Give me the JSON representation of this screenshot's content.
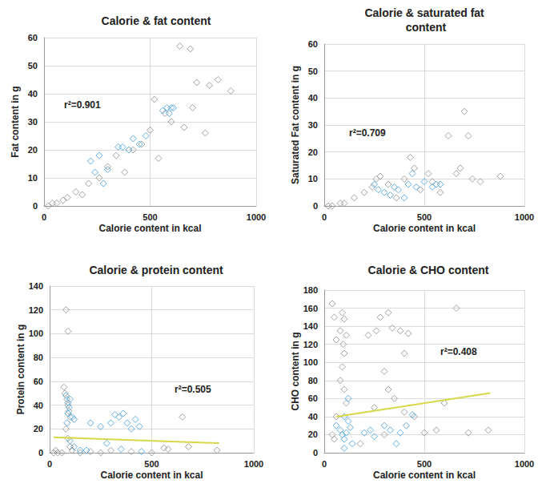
{
  "chart_data": [
    {
      "type": "scatter",
      "title": "Calorie & fat content",
      "x_label": "Calorie content in kcal",
      "y_label": "Fat content in g",
      "annotation": "r²=0.901",
      "xlim": [
        0,
        1000
      ],
      "xticks": [
        0,
        500,
        1000
      ],
      "ylim": [
        0,
        60
      ],
      "yticks": [
        0,
        10,
        20,
        30,
        40,
        50,
        60
      ],
      "grid": true,
      "series": [
        {
          "color": "#8c8c8c",
          "marker": "diamond",
          "x": [
            20,
            40,
            60,
            90,
            110,
            150,
            180,
            210,
            260,
            300,
            340,
            380,
            420,
            460,
            500,
            520,
            540,
            570,
            600,
            640,
            660,
            690,
            700,
            720,
            760,
            780,
            820,
            880
          ],
          "values": [
            0,
            1,
            1,
            2,
            3,
            5,
            4,
            8,
            10,
            14,
            18,
            12,
            20,
            22,
            27,
            38,
            17,
            33,
            30,
            57,
            28,
            56,
            35,
            44,
            26,
            43,
            45,
            41
          ]
        },
        {
          "color": "#3a9ad9",
          "marker": "diamond",
          "x": [
            220,
            240,
            260,
            280,
            300,
            350,
            370,
            400,
            420,
            450,
            480,
            560,
            580,
            590,
            600,
            610
          ],
          "values": [
            16,
            12,
            18,
            8,
            13,
            21,
            21,
            20,
            24,
            22,
            25,
            34,
            35,
            33,
            35,
            35
          ]
        }
      ]
    },
    {
      "type": "scatter",
      "title": "Calorie & saturated fat content",
      "x_label": "Calorie content in kcal",
      "y_label": "Saturated Fat content in g",
      "annotation": "r²=0.709",
      "xlim": [
        0,
        1000
      ],
      "xticks": [
        0,
        500,
        1000
      ],
      "ylim": [
        0,
        60
      ],
      "yticks": [
        0,
        10,
        20,
        30,
        40,
        50,
        60
      ],
      "grid": true,
      "series": [
        {
          "color": "#8c8c8c",
          "marker": "diamond",
          "x": [
            20,
            40,
            80,
            100,
            150,
            200,
            240,
            260,
            280,
            320,
            360,
            400,
            430,
            450,
            480,
            520,
            540,
            580,
            620,
            660,
            680,
            700,
            720,
            740,
            780,
            880
          ],
          "values": [
            0,
            0,
            1,
            1,
            3,
            5,
            7,
            10,
            11,
            8,
            3,
            10,
            18,
            14,
            6,
            12,
            9,
            5,
            26,
            12,
            14,
            35,
            26,
            10,
            9,
            11
          ]
        },
        {
          "color": "#3a9ad9",
          "marker": "diamond",
          "x": [
            250,
            270,
            300,
            330,
            350,
            370,
            400,
            420,
            440,
            460,
            500,
            540,
            560,
            580
          ],
          "values": [
            8,
            6,
            5,
            4,
            7,
            6,
            3,
            8,
            12,
            7,
            9,
            7,
            8,
            8
          ]
        }
      ]
    },
    {
      "type": "scatter",
      "title": "Calorie & protein content",
      "x_label": "Calorie content in kcal",
      "y_label": "Protein content in g",
      "annotation": "r²=0.505",
      "xlim": [
        0,
        1000
      ],
      "xticks": [
        0,
        500,
        1000
      ],
      "ylim": [
        0,
        140
      ],
      "yticks": [
        0,
        20,
        40,
        60,
        80,
        100,
        120,
        140
      ],
      "grid": true,
      "series": [
        {
          "color": "#8c8c8c",
          "marker": "diamond",
          "x": [
            80,
            90,
            70,
            75,
            85,
            90,
            95,
            100,
            80,
            90,
            100,
            110,
            60,
            40,
            20,
            30,
            150,
            200,
            250,
            300,
            400,
            500,
            560,
            580,
            650,
            680,
            820
          ],
          "values": [
            120,
            102,
            55,
            50,
            45,
            40,
            35,
            30,
            20,
            12,
            5,
            2,
            0,
            0,
            0,
            2,
            0,
            1,
            0,
            2,
            1,
            0,
            4,
            3,
            30,
            5,
            2
          ]
        },
        {
          "color": "#3a9ad9",
          "marker": "diamond",
          "x": [
            80,
            90,
            100,
            95,
            110,
            90,
            120,
            85,
            200,
            250,
            280,
            300,
            320,
            340,
            360,
            380,
            400,
            420,
            440,
            100,
            120,
            150,
            180,
            350,
            450
          ],
          "values": [
            48,
            42,
            45,
            38,
            30,
            33,
            28,
            25,
            25,
            22,
            8,
            25,
            32,
            30,
            33,
            25,
            20,
            28,
            22,
            10,
            5,
            2,
            2,
            3,
            1
          ]
        },
        {
          "type": "line",
          "color": "#d8d84a",
          "line_style": "solid",
          "x": [
            20,
            830
          ],
          "values": [
            13,
            8
          ]
        }
      ]
    },
    {
      "type": "scatter",
      "title": "Calorie & CHO content",
      "x_label": "Calorie content in kcal",
      "y_label": "CHO content in g",
      "annotation": "r²=0.408",
      "xlim": [
        0,
        1000
      ],
      "xticks": [
        0,
        500,
        1000
      ],
      "ylim": [
        0,
        180
      ],
      "yticks": [
        0,
        20,
        40,
        60,
        80,
        100,
        120,
        140,
        160,
        180
      ],
      "grid": true,
      "series": [
        {
          "color": "#8c8c8c",
          "marker": "diamond",
          "x": [
            40,
            50,
            60,
            80,
            90,
            100,
            95,
            110,
            100,
            90,
            80,
            100,
            110,
            60,
            40,
            50,
            220,
            260,
            280,
            320,
            340,
            380,
            400,
            420,
            300,
            320,
            350,
            400,
            450,
            300,
            500,
            560,
            600,
            660,
            720,
            820,
            250,
            180
          ],
          "values": [
            165,
            150,
            125,
            135,
            155,
            148,
            120,
            130,
            110,
            95,
            80,
            70,
            55,
            40,
            20,
            15,
            130,
            135,
            150,
            155,
            138,
            135,
            110,
            132,
            90,
            70,
            60,
            45,
            40,
            20,
            22,
            25,
            55,
            160,
            22,
            25,
            50,
            10
          ]
        },
        {
          "color": "#3a9ad9",
          "marker": "diamond",
          "x": [
            60,
            80,
            90,
            100,
            110,
            120,
            130,
            100,
            140,
            200,
            230,
            250,
            300,
            330,
            360,
            380,
            410,
            440,
            100,
            120
          ],
          "values": [
            30,
            25,
            20,
            15,
            22,
            35,
            28,
            5,
            10,
            22,
            25,
            18,
            30,
            25,
            10,
            22,
            30,
            42,
            40,
            60
          ]
        },
        {
          "type": "line",
          "color": "#d8d84a",
          "line_style": "solid",
          "x": [
            60,
            830
          ],
          "values": [
            40,
            66
          ]
        }
      ]
    }
  ]
}
